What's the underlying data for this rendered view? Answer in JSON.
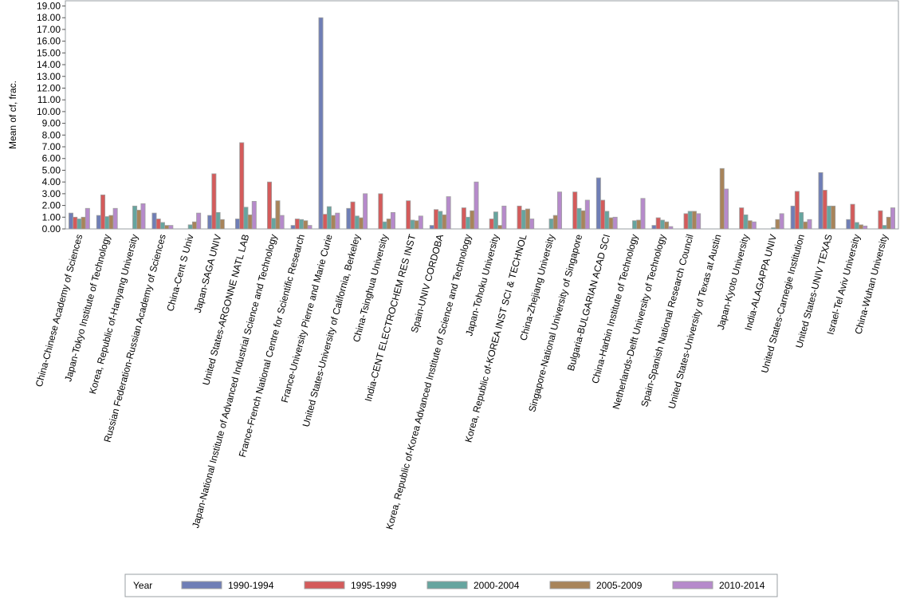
{
  "chart_data": {
    "type": "bar",
    "title": "",
    "xlabel": "",
    "ylabel": "Mean of cf, frac.",
    "ylim": [
      0,
      19
    ],
    "yticks": [
      0,
      1,
      2,
      3,
      4,
      5,
      6,
      7,
      8,
      9,
      10,
      11,
      12,
      13,
      14,
      15,
      16,
      17,
      18,
      19
    ],
    "ytick_format_decimals": 2,
    "grid": false,
    "legend": {
      "title": "Year",
      "placement": "bottom"
    },
    "categories": [
      "China-Chinese Academy of Sciences",
      "Japan-Tokyo Institute of Technology",
      "Korea, Republic of-Hanyang University",
      "Russian Federation-Russian Academy of Sciences",
      "China-Cent S Univ",
      "Japan-SAGA UNIV",
      "United States-ARGONNE NATL LAB",
      "Japan-National Institute of Advanced Industrial Science and Technology",
      "France-French National Centre for Scientific Research",
      "France-University Pierre and Marie Curie",
      "United States-University of California, Berkeley",
      "China-Tsinghua University",
      "India-CENT ELECTROCHEM RES INST",
      "Spain-UNIV CORDOBA",
      "Korea, Republic of-Korea Advanced Institute of Science and Technology",
      "Japan-Tohoku University",
      "Korea, Republic of-KOREA INST SCI & TECHNOL",
      "China-Zhejiang University",
      "Singapore-National University of Singapore",
      "Bulgaria-BULGARIAN ACAD SCI",
      "China-Harbin Institute of Technology",
      "Netherlands-Delft University of Technology",
      "Spain-Spanish National Research Council",
      "United States-University of Texas at Austin",
      "Japan-Kyoto University",
      "India-ALAGAPPA UNIV",
      "United States-Carnegie Institution",
      "United States-UNIV TEXAS",
      "Israel-Tel Aviv University",
      "China-Wuhan University"
    ],
    "series": [
      {
        "name": "1990-1994",
        "color": "#6f7eb6",
        "values": [
          1.35,
          1.15,
          null,
          1.35,
          null,
          1.15,
          0.85,
          null,
          0.3,
          18.0,
          1.75,
          null,
          null,
          0.3,
          null,
          null,
          null,
          null,
          null,
          4.35,
          null,
          0.3,
          null,
          null,
          null,
          null,
          1.95,
          4.8,
          0.8,
          null
        ]
      },
      {
        "name": "1995-1999",
        "color": "#d45b5b",
        "values": [
          1.0,
          2.9,
          null,
          0.85,
          null,
          4.7,
          7.35,
          4.0,
          0.85,
          1.25,
          2.3,
          3.0,
          2.4,
          1.65,
          1.8,
          0.85,
          1.95,
          null,
          3.15,
          2.45,
          null,
          0.95,
          1.3,
          null,
          1.8,
          null,
          3.2,
          3.3,
          2.1,
          1.55
        ]
      },
      {
        "name": "2000-2004",
        "color": "#66a59f",
        "values": [
          0.85,
          1.05,
          1.95,
          0.55,
          0.35,
          1.4,
          1.85,
          0.9,
          0.8,
          1.9,
          1.1,
          0.6,
          0.75,
          1.5,
          1.0,
          1.45,
          1.6,
          0.85,
          1.75,
          1.5,
          0.7,
          0.75,
          1.5,
          null,
          1.2,
          0.1,
          1.4,
          1.95,
          0.55,
          0.3
        ]
      },
      {
        "name": "2005-2009",
        "color": "#a8845a",
        "values": [
          1.0,
          1.15,
          1.6,
          0.3,
          0.6,
          0.8,
          1.2,
          2.4,
          0.7,
          1.15,
          0.95,
          0.85,
          0.7,
          1.2,
          1.55,
          0.3,
          1.7,
          1.15,
          1.55,
          0.95,
          0.75,
          0.6,
          1.5,
          5.15,
          0.7,
          0.8,
          0.6,
          1.95,
          0.35,
          1.0
        ]
      },
      {
        "name": "2010-2014",
        "color": "#b68acb",
        "values": [
          1.75,
          1.75,
          2.15,
          0.3,
          1.35,
          null,
          2.35,
          1.15,
          0.3,
          1.35,
          3.0,
          1.4,
          1.1,
          2.75,
          4.0,
          1.95,
          0.85,
          3.15,
          2.45,
          1.0,
          2.6,
          0.2,
          1.3,
          3.4,
          0.6,
          1.3,
          0.8,
          null,
          0.25,
          1.8
        ]
      }
    ]
  }
}
